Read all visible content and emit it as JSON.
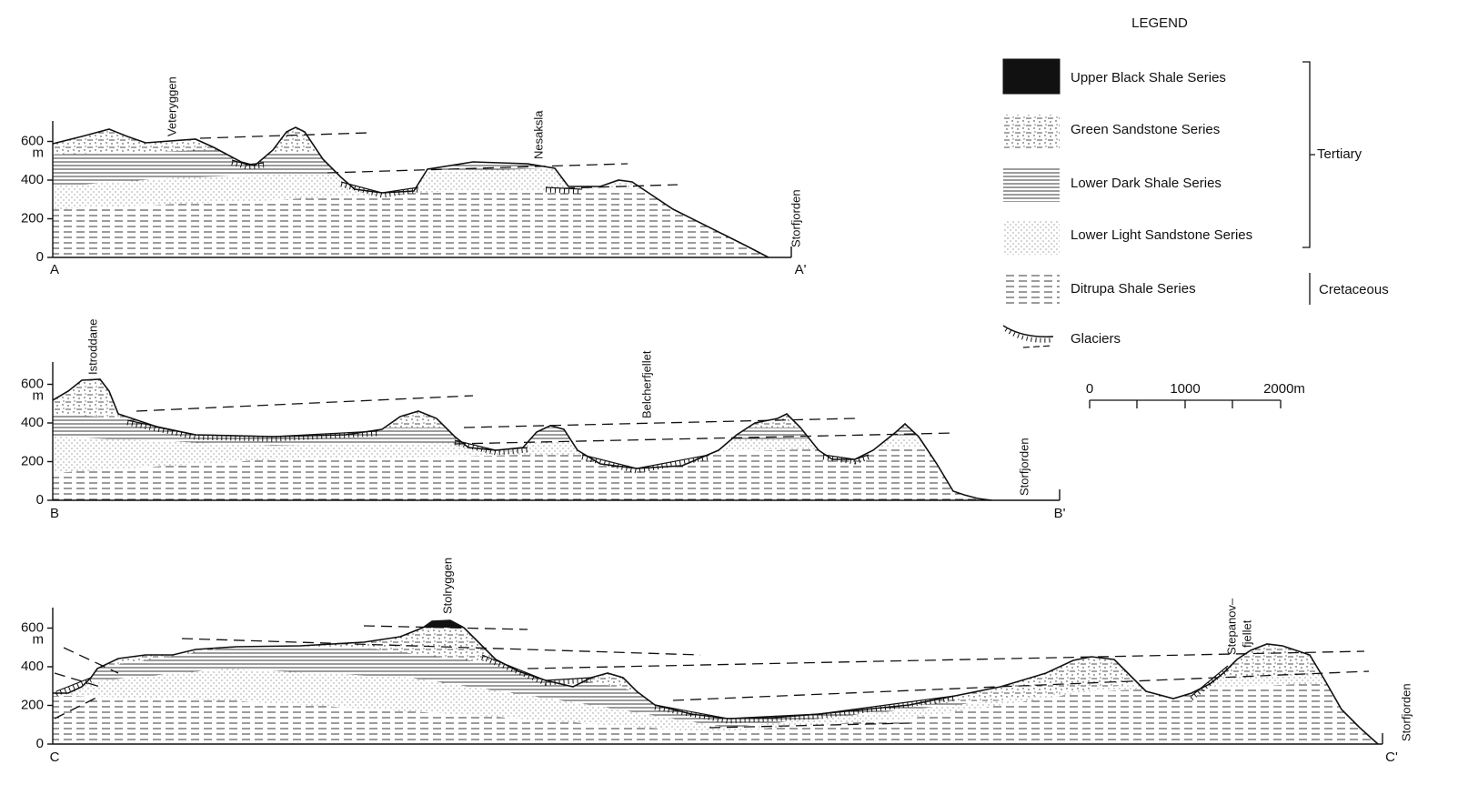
{
  "legend": {
    "title": "LEGEND",
    "items": [
      "Upper Black Shale Series",
      "Green Sandstone Series",
      "Lower Dark Shale Series",
      "Lower Light Sandstone Series",
      "Ditrupa Shale Series",
      "Glaciers"
    ],
    "groups": [
      "Tertiary",
      "Cretaceous"
    ]
  },
  "scale": {
    "labels": [
      "0",
      "1000",
      "2000m"
    ]
  },
  "sections": [
    {
      "start": "A",
      "end": "A'",
      "axis": [
        "600",
        "m",
        "400",
        "200",
        "0"
      ],
      "places": [
        "Veteryggen",
        "Nesaksla",
        "Storfjorden"
      ]
    },
    {
      "start": "B",
      "end": "B'",
      "axis": [
        "600",
        "m",
        "400",
        "200",
        "0"
      ],
      "places": [
        "Istroddane",
        "Belcherfjellet",
        "Storfjorden"
      ]
    },
    {
      "start": "C",
      "end": "C'",
      "axis": [
        "600",
        "m",
        "400",
        "200",
        "0"
      ],
      "places": [
        "Stolryggen",
        "Stepanov–",
        "fjellet",
        "Storfjorden"
      ]
    }
  ]
}
